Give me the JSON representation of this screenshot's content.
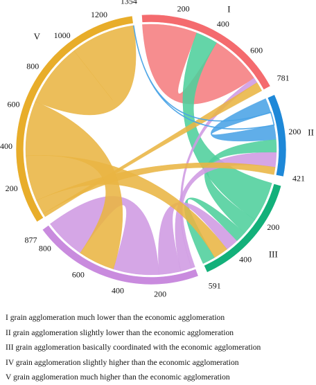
{
  "chart_data": {
    "type": "chord",
    "groups": [
      {
        "id": "I",
        "label": "I",
        "total": 781,
        "color": "#f46b6e",
        "ticks": [
          200,
          400,
          600
        ]
      },
      {
        "id": "II",
        "label": "II",
        "total": 421,
        "color": "#1e88d8",
        "ticks": [
          200
        ]
      },
      {
        "id": "III",
        "label": "III",
        "total": 591,
        "color": "#13b07a",
        "ticks": [
          200,
          400
        ]
      },
      {
        "id": "IV",
        "label": "IV",
        "total": 877,
        "color": "#c98bde",
        "ticks": [
          200,
          400,
          600,
          800
        ]
      },
      {
        "id": "V",
        "label": "V",
        "total": 1354,
        "color": "#e8ad2a",
        "ticks": [
          200,
          400,
          600,
          800,
          1000,
          1200
        ]
      }
    ],
    "chords": [
      {
        "source": "I",
        "target": "I",
        "s": [
          0,
          300
        ],
        "t": [
          420,
          700
        ],
        "color": "#f57d80"
      },
      {
        "source": "III",
        "target": "I",
        "s": [
          0,
          220
        ],
        "t": [
          300,
          420
        ],
        "color": "#4fcf9c"
      },
      {
        "source": "IV",
        "target": "I",
        "s": [
          0,
          20
        ],
        "t": [
          700,
          730
        ],
        "color": "#cf9ae2"
      },
      {
        "source": "V",
        "target": "I",
        "s": [
          0,
          20
        ],
        "t": [
          730,
          781
        ],
        "color": "#e9b543"
      },
      {
        "source": "II",
        "target": "II",
        "s": [
          0,
          80
        ],
        "t": [
          150,
          230
        ],
        "color": "#4aa3e6"
      },
      {
        "source": "III",
        "target": "II",
        "s": [
          220,
          310
        ],
        "t": [
          230,
          300
        ],
        "color": "#4fcf9c"
      },
      {
        "source": "IV",
        "target": "II",
        "s": [
          20,
          80
        ],
        "t": [
          300,
          380
        ],
        "color": "#cf9ae2"
      },
      {
        "source": "V",
        "target": "II",
        "s": [
          20,
          100
        ],
        "t": [
          380,
          421
        ],
        "color": "#e9b543"
      },
      {
        "source": "III",
        "target": "III",
        "s": [
          310,
          370
        ],
        "t": [
          520,
          591
        ],
        "color": "#4fcf9c"
      },
      {
        "source": "IV",
        "target": "III",
        "s": [
          80,
          200
        ],
        "t": [
          370,
          440
        ],
        "color": "#cf9ae2"
      },
      {
        "source": "V",
        "target": "III",
        "s": [
          100,
          350
        ],
        "t": [
          440,
          520
        ],
        "color": "#e9b543"
      },
      {
        "source": "IV",
        "target": "IV",
        "s": [
          200,
          450
        ],
        "t": [
          650,
          877
        ],
        "color": "#cf9ae2"
      },
      {
        "source": "V",
        "target": "IV",
        "s": [
          350,
          650
        ],
        "t": [
          450,
          650
        ],
        "color": "#e9b543"
      },
      {
        "source": "V",
        "target": "V",
        "s": [
          650,
          1000
        ],
        "t": [
          1000,
          1354
        ],
        "color": "#e9b543"
      },
      {
        "source": "II",
        "target": "V",
        "s": [
          80,
          150
        ],
        "t": [
          1354,
          1354
        ],
        "color": "#4aa3e6"
      }
    ],
    "legend": [
      "I grain agglomeration much lower than the economic agglomeration",
      "II grain agglomeration slightly lower than the economic agglomeration",
      "III grain agglomeration basically coordinated with the economic agglomeration",
      "IV grain agglomeration slightly higher than the economic agglomeration",
      "V grain agglomeration much higher than the economic agglomeration"
    ]
  }
}
